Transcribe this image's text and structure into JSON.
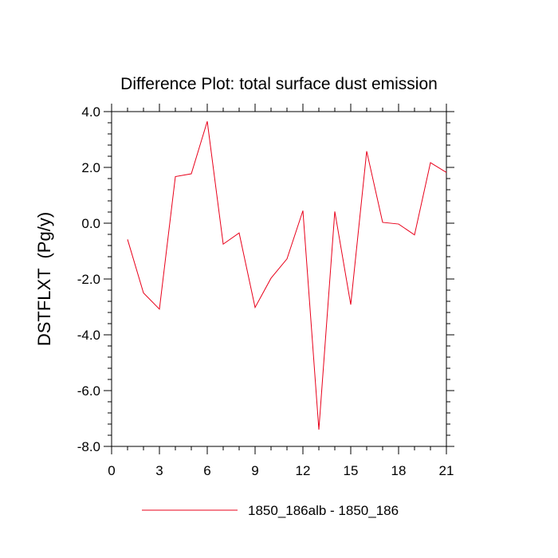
{
  "chart_data": {
    "type": "line",
    "title": "Difference Plot: total surface dust emission",
    "xlabel": "",
    "ylabel": "DSTFLXT  (Pg/y)",
    "xlim": [
      0,
      21
    ],
    "ylim": [
      -8,
      4
    ],
    "x_ticks": [
      0,
      3,
      6,
      9,
      12,
      15,
      18,
      21
    ],
    "x_tick_labels": [
      "0",
      "3",
      "6",
      "9",
      "12",
      "15",
      "18",
      "21"
    ],
    "y_ticks": [
      -8,
      -6,
      -4,
      -2,
      0,
      2,
      4
    ],
    "y_tick_labels": [
      "-8.0",
      "-6.0",
      "-4.0",
      "-2.0",
      "0.0",
      "2.0",
      "4.0"
    ],
    "grid": false,
    "legend_position": "bottom-center",
    "series": [
      {
        "name": "1850_186alb - 1850_186",
        "color": "#e8001a",
        "x": [
          1,
          2,
          3,
          4,
          5,
          6,
          7,
          8,
          9,
          10,
          11,
          12,
          13,
          14,
          15,
          16,
          17,
          18,
          19,
          20,
          21
        ],
        "y": [
          -0.58,
          -2.5,
          -3.08,
          1.67,
          1.77,
          3.65,
          -0.75,
          -0.35,
          -3.02,
          -1.97,
          -1.28,
          0.45,
          -7.4,
          0.42,
          -2.92,
          2.58,
          0.03,
          -0.03,
          -0.42,
          2.17,
          1.82
        ]
      }
    ]
  }
}
